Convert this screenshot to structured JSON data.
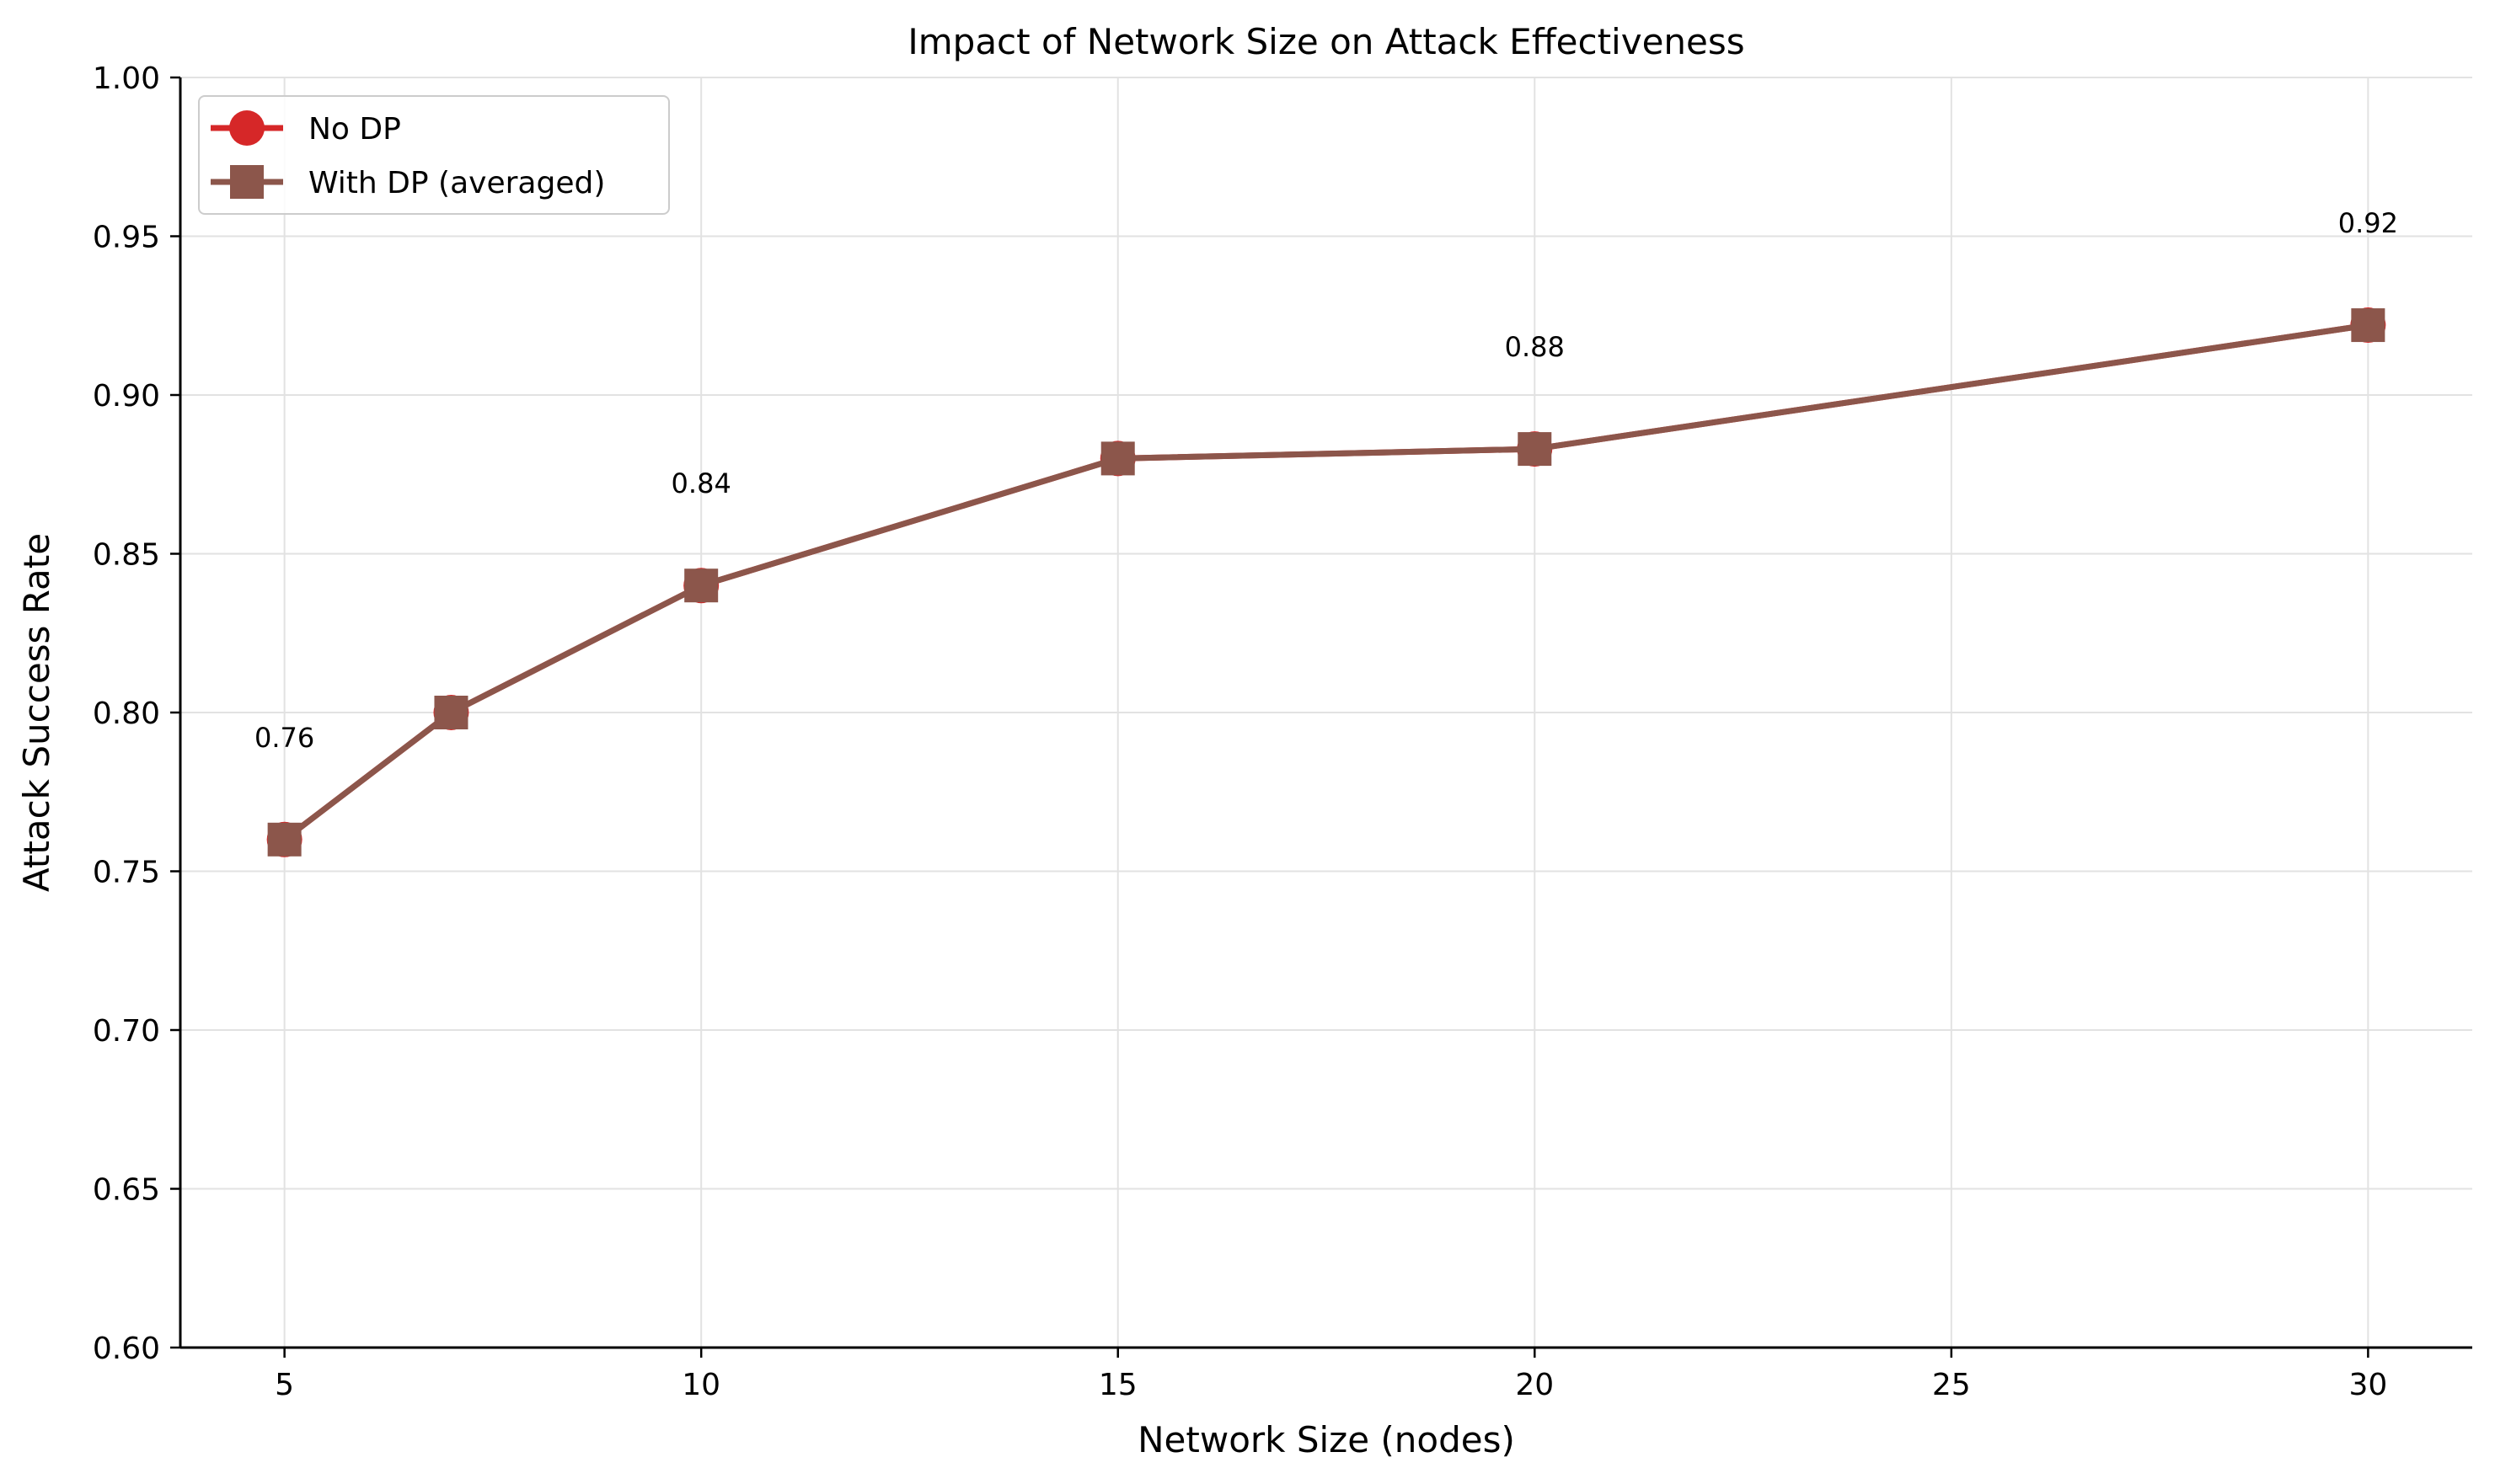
{
  "chart_data": {
    "type": "line",
    "title": "Impact of Network Size on Attack Effectiveness",
    "xlabel": "Network Size (nodes)",
    "ylabel": "Attack Success Rate",
    "xlim": [
      3.75,
      31.25
    ],
    "ylim": [
      0.6,
      1.0
    ],
    "x_ticks": [
      5,
      10,
      15,
      20,
      25,
      30
    ],
    "x_tick_labels": [
      "5",
      "10",
      "15",
      "20",
      "25",
      "30"
    ],
    "y_ticks": [
      0.6,
      0.65,
      0.7,
      0.75,
      0.8,
      0.85,
      0.9,
      0.95,
      1.0
    ],
    "y_tick_labels": [
      "0.60",
      "0.65",
      "0.70",
      "0.75",
      "0.80",
      "0.85",
      "0.90",
      "0.95",
      "1.00"
    ],
    "grid": true,
    "legend_position": "top-left",
    "series": [
      {
        "name": "No DP",
        "color": "#d62728",
        "marker": "circle",
        "x": [
          5,
          7,
          10,
          15,
          20,
          30
        ],
        "y": [
          0.76,
          0.8,
          0.84,
          0.88,
          0.883,
          0.922
        ]
      },
      {
        "name": "With DP (averaged)",
        "color": "#8c564b",
        "marker": "square",
        "x": [
          5,
          7,
          10,
          15,
          20,
          30
        ],
        "y": [
          0.76,
          0.8,
          0.84,
          0.88,
          0.883,
          0.922
        ]
      }
    ],
    "annotations": [
      {
        "x": 5,
        "y": 0.76,
        "text": "0.76"
      },
      {
        "x": 10,
        "y": 0.84,
        "text": "0.84"
      },
      {
        "x": 20,
        "y": 0.883,
        "text": "0.88"
      },
      {
        "x": 30,
        "y": 0.922,
        "text": "0.92"
      }
    ]
  }
}
